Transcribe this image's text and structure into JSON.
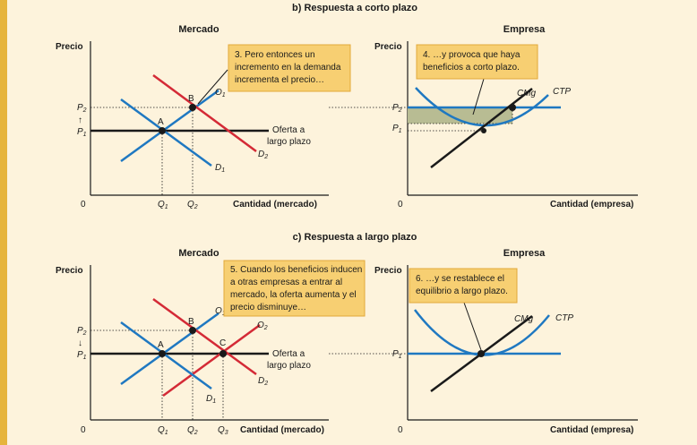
{
  "colors": {
    "background": "#fdf3dc",
    "sidebar": "#e6b43c",
    "note_box": "#f7cf72",
    "note_border": "#e2a93a",
    "blue": "#1f78c1",
    "red": "#d42a36",
    "black": "#1a1a1a",
    "profit_area": "#b8bc93"
  },
  "section_b": {
    "title": "b) Respuesta a corto plazo",
    "market": {
      "heading": "Mercado",
      "y_axis": "Precio",
      "x_axis": "Cantidad (mercado)",
      "origin": "0",
      "note": [
        "3. Pero entonces un",
        "incremento en la demanda",
        "incrementa el precio…"
      ],
      "labels": {
        "O1": "O",
        "O1_sub": "1",
        "D1": "D",
        "D1_sub": "1",
        "D2": "D",
        "D2_sub": "2",
        "A": "A",
        "B": "B",
        "P1": "P",
        "P1_sub": "1",
        "P2": "P",
        "P2_sub": "2",
        "Q1": "Q",
        "Q1_sub": "1",
        "Q2": "Q",
        "Q2_sub": "2",
        "lr_supply": [
          "Oferta a",
          "largo plazo"
        ],
        "arrow": "↑"
      }
    },
    "firm": {
      "heading": "Empresa",
      "y_axis": "Precio",
      "x_axis": "Cantidad (empresa)",
      "origin": "0",
      "note": [
        "4. …y provoca que haya",
        "beneficios a corto plazo."
      ],
      "labels": {
        "CMg": "CMg",
        "CTP": "CTP",
        "P1": "P",
        "P1_sub": "1",
        "P2": "P",
        "P2_sub": "2"
      }
    }
  },
  "section_c": {
    "title": "c) Respuesta a largo plazo",
    "market": {
      "heading": "Mercado",
      "y_axis": "Precio",
      "x_axis": "Cantidad (mercado)",
      "origin": "0",
      "note": [
        "5. Cuando los beneficios inducen",
        "a otras empresas a entrar al",
        "mercado, la oferta aumenta y el",
        "precio disminuye…"
      ],
      "labels": {
        "O1": "O",
        "O1_sub": "1",
        "O2": "O",
        "O2_sub": "2",
        "D1": "D",
        "D1_sub": "1",
        "D2": "D",
        "D2_sub": "2",
        "A": "A",
        "B": "B",
        "C": "C",
        "P1": "P",
        "P1_sub": "1",
        "P2": "P",
        "P2_sub": "2",
        "Q1": "Q",
        "Q1_sub": "1",
        "Q2": "Q",
        "Q2_sub": "2",
        "Q3": "Q",
        "Q3_sub": "3",
        "lr_supply": [
          "Oferta a",
          "largo plazo"
        ],
        "arrow": "↓"
      }
    },
    "firm": {
      "heading": "Empresa",
      "y_axis": "Precio",
      "x_axis": "Cantidad (empresa)",
      "origin": "0",
      "note": [
        "6. …y se restablece el",
        "equilibrio a largo plazo."
      ],
      "labels": {
        "CMg": "CMg",
        "CTP": "CTP",
        "P1": "P",
        "P1_sub": "1"
      }
    }
  }
}
